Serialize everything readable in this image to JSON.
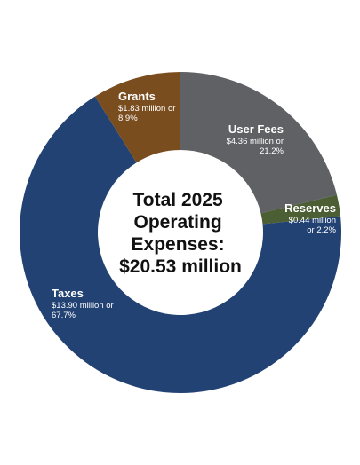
{
  "chart_data": {
    "type": "pie",
    "variant": "donut",
    "center_label": [
      "Total 2025",
      "Operating",
      "Expenses:",
      "$20.53 million"
    ],
    "slices": [
      {
        "name": "User Fees",
        "value": 4.36,
        "detail": [
          "$4.36 million or",
          "21.2%"
        ],
        "color": "#606165"
      },
      {
        "name": "Reserves",
        "value": 0.44,
        "detail": [
          "$0.44 million",
          "or 2.2%"
        ],
        "color": "#4c5e34"
      },
      {
        "name": "Taxes",
        "value": 13.9,
        "detail": [
          "$13.90 million or",
          "67.7%"
        ],
        "color": "#224273"
      },
      {
        "name": "Grants",
        "value": 1.83,
        "detail": [
          "$1.83 million or",
          "8.9%"
        ],
        "color": "#7a4d1f"
      }
    ],
    "start_angle_deg": 0,
    "direction": "clockwise"
  }
}
